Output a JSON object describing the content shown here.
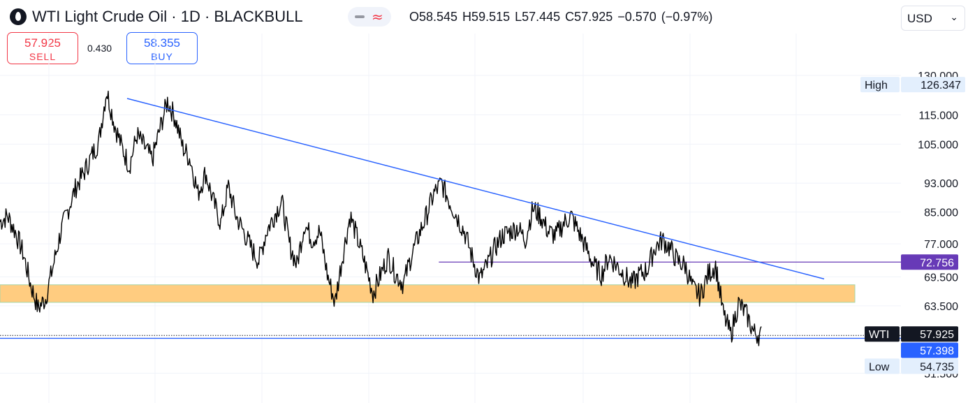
{
  "header": {
    "title": "WTI Light Crude Oil · 1D · BLACKBULL",
    "ohlc": "O58.545  H59.515  L57.445  C57.925  −0.570 (−0.97%)",
    "currency": "USD",
    "currency_chevron": "chevron-down-icon"
  },
  "trade": {
    "sell_price": "57.925",
    "sell_label": "SELL",
    "spread": "0.430",
    "buy_price": "58.355",
    "buy_label": "BUY"
  },
  "chart_data": {
    "type": "line",
    "symbol": "WTI",
    "last_price": 57.925,
    "high": 126.347,
    "low": 54.735,
    "ylim": [
      50,
      134
    ],
    "y_scale": "log",
    "grid": true,
    "y_ticks": [
      "130.000",
      "115.000",
      "105.000",
      "93.000",
      "85.000",
      "77.000",
      "69.500",
      "63.500",
      "51.500"
    ],
    "price_labels": {
      "high_label": "High",
      "high_value": "126.347",
      "symbol_label": "WTI",
      "last_value": "57.925",
      "low_label": "Low",
      "low_value": "54.735",
      "resistance_value": "72.756",
      "line_value": "57.398"
    },
    "series": [
      {
        "values": [
          82.5,
          84,
          80,
          75,
          68,
          63,
          65,
          72,
          80,
          86,
          92,
          96,
          101,
          106,
          124,
          112,
          104,
          98,
          108,
          104,
          100,
          110,
          120,
          114,
          104,
          100,
          90,
          96,
          88,
          82,
          92,
          84,
          80,
          76,
          73,
          80,
          84,
          88,
          77,
          72,
          82,
          78,
          80,
          70,
          64,
          74,
          84,
          78,
          72,
          66,
          70,
          74,
          70,
          68,
          74,
          79,
          84,
          90,
          93,
          88,
          84,
          80,
          74,
          69,
          72,
          76,
          79,
          80,
          81,
          78,
          86,
          84,
          80,
          79,
          82,
          84,
          80,
          76,
          72,
          70,
          74,
          72,
          70,
          68,
          70,
          71,
          76,
          78,
          76,
          73,
          72,
          67,
          65.5,
          70,
          72,
          62,
          58,
          64,
          62,
          58.5,
          57.9
        ]
      }
    ],
    "annotations": [
      {
        "type": "trendline",
        "from": {
          "t": 0.13,
          "value": 121
        },
        "to": {
          "t": 0.85,
          "value": 71
        }
      },
      {
        "type": "horizontal",
        "value": 72.756,
        "from_t": 0.51,
        "to_t": 0.92
      },
      {
        "type": "zone",
        "low": 64.2,
        "high": 67.8
      },
      {
        "type": "horizontal",
        "value": 57.398
      },
      {
        "type": "dotted",
        "value": 57.925
      }
    ],
    "colors": {
      "price": "#000000",
      "trend": "#2962ff",
      "resistance": "#673ab7",
      "zone_fill": "#ffcc80",
      "zone_border": "#a5d6a7",
      "tag_dark": "#131722",
      "tag_blue": "#2962ff",
      "tag_purple": "#673ab7",
      "tag_light": "#e3effd",
      "grid": "#f0f3fa"
    }
  }
}
